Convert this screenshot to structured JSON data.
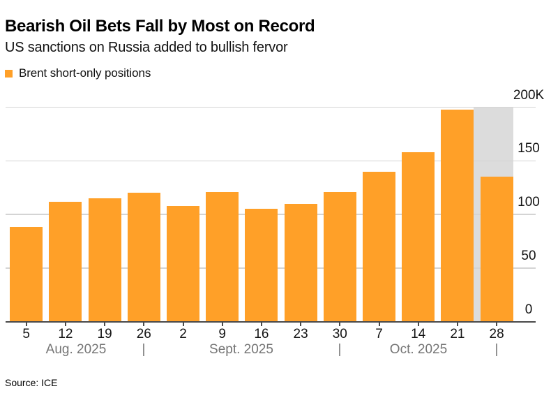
{
  "header": {
    "title": "Bearish Oil Bets Fall by Most on Record",
    "subtitle": "US sanctions on Russia added to bullish fervor"
  },
  "legend": {
    "label": "Brent short-only positions",
    "swatch_color": "#FFA028"
  },
  "source": "Source: ICE",
  "colors": {
    "bar": "#FFA028",
    "highlight_band": "#dcdcdc",
    "gridline": "#d4d4d4",
    "axis_line": "#4a4a4a",
    "month_text": "#757575",
    "label_text": "#141414"
  },
  "chart_data": {
    "type": "bar",
    "title": "Bearish Oil Bets Fall by Most on Record",
    "subtitle": "US sanctions on Russia added to bullish fervor",
    "series_name": "Brent short-only positions",
    "unit": "thousands (K)",
    "categories": [
      "5",
      "12",
      "19",
      "26",
      "2",
      "9",
      "16",
      "23",
      "30",
      "7",
      "14",
      "21",
      "28"
    ],
    "values": [
      88,
      112,
      115,
      120,
      108,
      121,
      105,
      110,
      121,
      140,
      158,
      198,
      135
    ],
    "month_groups": [
      {
        "label": "Aug. 2025",
        "start_index": 0,
        "end_index": 3
      },
      {
        "label": "Sept. 2025",
        "start_index": 4,
        "end_index": 8
      },
      {
        "label": "Oct. 2025",
        "start_index": 9,
        "end_index": 12
      }
    ],
    "divider_char": "|",
    "y_ticks": [
      {
        "value": 0,
        "label": "0"
      },
      {
        "value": 50,
        "label": "50"
      },
      {
        "value": 100,
        "label": "100"
      },
      {
        "value": 150,
        "label": "150"
      },
      {
        "value": 200,
        "label": "200K"
      }
    ],
    "ylim": [
      0,
      200
    ],
    "grid": true,
    "legend_position": "top-left",
    "y_axis_side": "right",
    "highlight_band_index": 12
  }
}
